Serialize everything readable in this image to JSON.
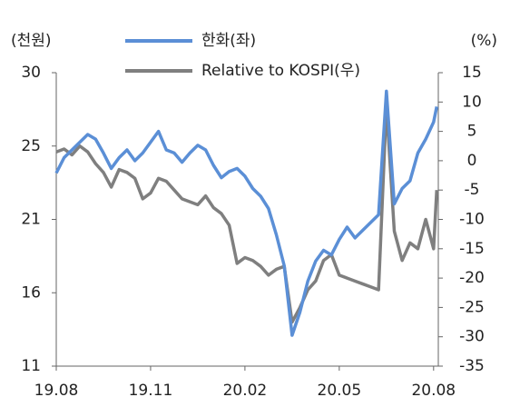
{
  "chart_data": {
    "type": "line",
    "y_label": "(천원)",
    "y2_label": "(%)",
    "x": [
      0,
      0.25,
      0.5,
      0.75,
      1,
      1.25,
      1.5,
      1.75,
      2,
      2.25,
      2.5,
      2.75,
      3,
      3.25,
      3.5,
      3.75,
      4,
      4.25,
      4.5,
      4.75,
      5,
      5.25,
      5.5,
      5.75,
      6,
      6.25,
      6.5,
      6.75,
      7,
      7.25,
      7.5,
      7.75,
      8,
      8.25,
      8.5,
      8.75,
      9,
      9.25,
      9.5,
      9.75,
      10,
      10.25,
      10.5,
      10.75,
      11,
      11.25,
      11.5,
      11.75,
      12,
      12.1
    ],
    "xlim": [
      0,
      12.15
    ],
    "xticks": [
      {
        "value": 0,
        "label": "19.08"
      },
      {
        "value": 3,
        "label": "19.11"
      },
      {
        "value": 6,
        "label": "20.02"
      },
      {
        "value": 9,
        "label": "20.05"
      },
      {
        "value": 12,
        "label": "20.08"
      }
    ],
    "ylim": [
      11,
      30
    ],
    "yticks": [
      11,
      {
        "value": 15.75,
        "label": "16"
      },
      {
        "value": 20.5,
        "label": "21"
      },
      {
        "value": 25.25,
        "label": "25"
      },
      30
    ],
    "y2lim": [
      -35,
      15
    ],
    "y2ticks": [
      -35,
      -30,
      -25,
      -20,
      -15,
      -10,
      -5,
      0,
      5,
      10,
      15
    ],
    "legend": "top",
    "series": [
      {
        "name": "한화(좌)",
        "color": "#5b8fd6",
        "values": [
          23.5,
          24.5,
          25,
          25.5,
          26,
          25.7,
          24.8,
          23.8,
          24.5,
          25,
          24.3,
          24.8,
          25.5,
          26.2,
          25,
          24.8,
          24.2,
          24.8,
          25.3,
          25,
          24,
          23.2,
          23.6,
          23.8,
          23.3,
          22.5,
          22,
          21.2,
          19.5,
          17.5,
          13,
          14.5,
          16.5,
          17.8,
          18.5,
          18.2,
          19.2,
          20,
          19.3,
          19.8,
          20.3,
          20.8,
          28.8,
          21.5,
          22.5,
          23,
          24.8,
          25.7,
          26.8,
          27.8
        ]
      },
      {
        "name": "Relative to KOSPI(우)",
        "color": "#7f7f7f",
        "axis": "y2",
        "values": [
          1.5,
          2,
          1,
          2.5,
          1.5,
          -0.5,
          -2,
          -4.5,
          -1.5,
          -2,
          -3,
          -6.5,
          -5.5,
          -3,
          -3.5,
          -5,
          -6.5,
          -7,
          -7.5,
          -6,
          -8,
          -9,
          -11,
          -17.5,
          -16.5,
          -17,
          -18,
          -19.5,
          -18.5,
          -18,
          -27.5,
          -25,
          -22,
          -20.5,
          -17,
          -16,
          -19.5,
          -20,
          -20.5,
          -21,
          -21.5,
          -22,
          9.5,
          -12,
          -17,
          -14,
          -15,
          -10,
          -15,
          -5
        ]
      }
    ]
  }
}
